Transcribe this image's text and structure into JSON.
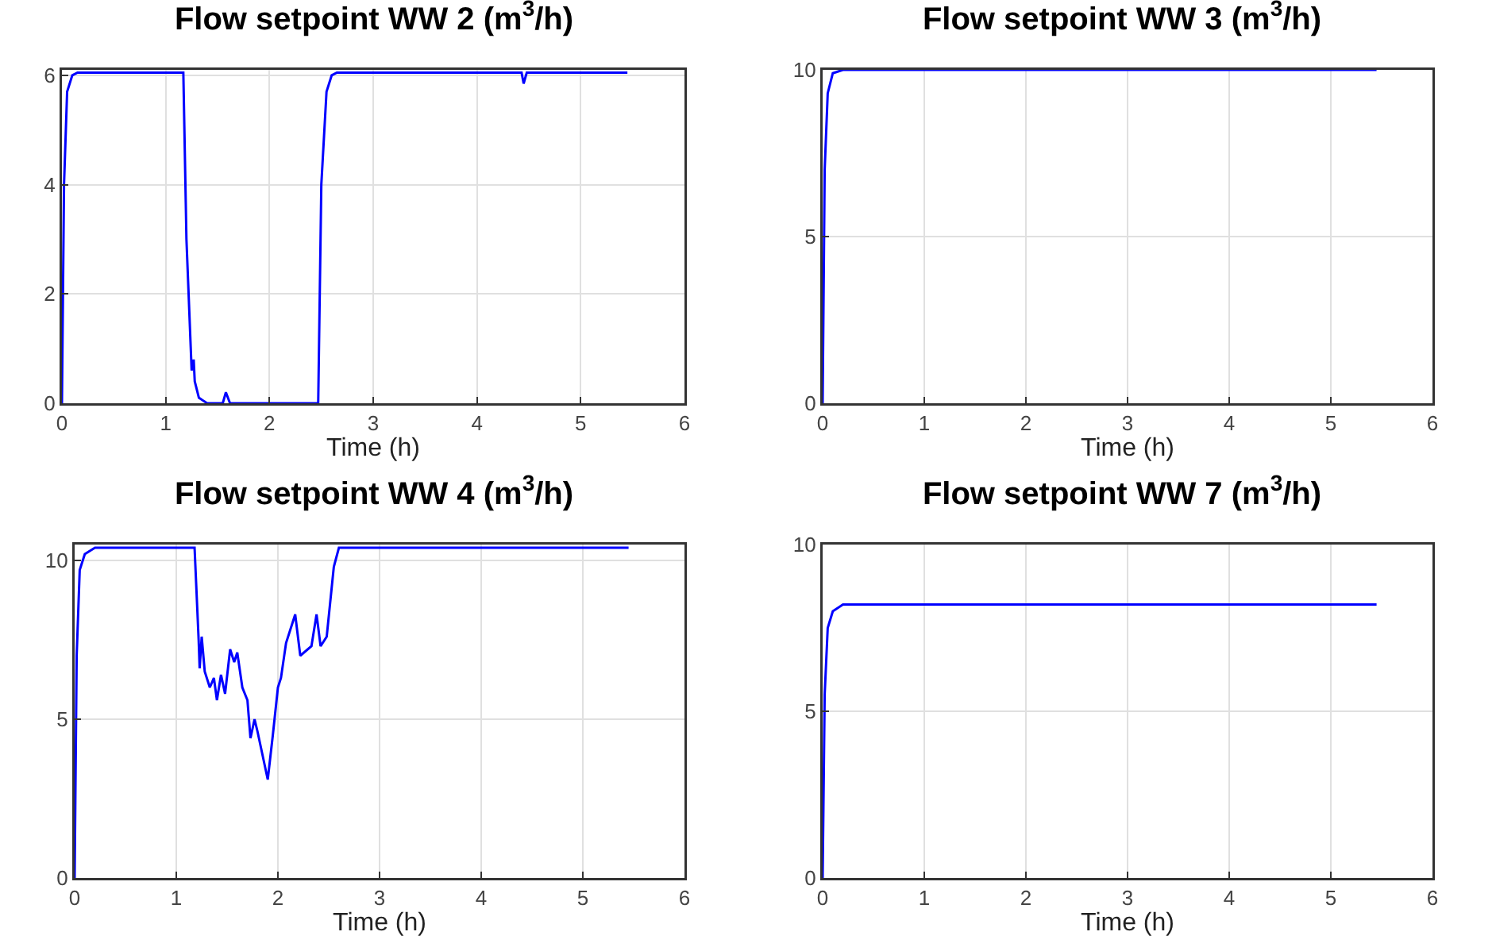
{
  "chart_data": [
    {
      "type": "line",
      "title": "Flow setpoint WW 2 (m$^{3}$/h)",
      "xlabel": "Time (h)",
      "xlim": [
        0,
        6
      ],
      "xticks": [
        0,
        1,
        2,
        3,
        4,
        5,
        6
      ],
      "ylim": [
        0,
        6.1
      ],
      "yticks": [
        0,
        2,
        4,
        6
      ],
      "grid": true,
      "line_style": "solid",
      "series": [
        {
          "color": "#0000ff",
          "x": [
            0,
            0.02,
            0.05,
            0.1,
            0.15,
            1.17,
            1.2,
            1.25,
            1.27,
            1.28,
            1.32,
            1.4,
            1.55,
            1.58,
            1.62,
            2.0,
            2.47,
            2.5,
            2.55,
            2.6,
            2.65,
            4.43,
            4.45,
            4.48,
            5.45
          ],
          "values": [
            0,
            4,
            5.7,
            6.0,
            6.05,
            6.05,
            3,
            0.6,
            0.8,
            0.4,
            0.1,
            0,
            0,
            0.2,
            0,
            0,
            0,
            4,
            5.7,
            6.0,
            6.05,
            6.05,
            5.85,
            6.05,
            6.05
          ]
        }
      ]
    },
    {
      "type": "line",
      "title": "Flow setpoint WW 3 (m$^{3}$/h)",
      "xlabel": "Time (h)",
      "xlim": [
        0,
        6
      ],
      "xticks": [
        0,
        1,
        2,
        3,
        4,
        5,
        6
      ],
      "ylim": [
        0,
        10
      ],
      "yticks": [
        0,
        5,
        10
      ],
      "grid": true,
      "line_style": "solid",
      "series": [
        {
          "color": "#0000ff",
          "x": [
            0,
            0.02,
            0.05,
            0.1,
            0.2,
            5.45
          ],
          "values": [
            0,
            7,
            9.3,
            9.9,
            10,
            10
          ]
        }
      ]
    },
    {
      "type": "line",
      "title": "Flow setpoint WW 4 (m$^{3}$/h)",
      "xlabel": "Time (h)",
      "xlim": [
        0,
        6
      ],
      "xticks": [
        0,
        1,
        2,
        3,
        4,
        5,
        6
      ],
      "ylim": [
        0,
        10.5
      ],
      "yticks": [
        0,
        5,
        10
      ],
      "grid": true,
      "line_style": "solid",
      "series": [
        {
          "color": "#0000ff",
          "x": [
            0,
            0.02,
            0.05,
            0.1,
            0.2,
            1.18,
            1.22,
            1.23,
            1.25,
            1.28,
            1.33,
            1.37,
            1.4,
            1.44,
            1.48,
            1.53,
            1.57,
            1.6,
            1.65,
            1.7,
            1.73,
            1.77,
            1.8,
            1.9,
            1.95,
            2.0,
            2.03,
            2.08,
            2.17,
            2.22,
            2.33,
            2.38,
            2.42,
            2.48,
            2.55,
            2.6,
            5.45
          ],
          "values": [
            0,
            7,
            9.7,
            10.2,
            10.4,
            10.4,
            7.5,
            6.6,
            7.6,
            6.5,
            6.0,
            6.3,
            5.6,
            6.4,
            5.8,
            7.2,
            6.8,
            7.1,
            6.0,
            5.6,
            4.4,
            5.0,
            4.6,
            3.1,
            4.5,
            6.0,
            6.3,
            7.4,
            8.3,
            7.0,
            7.3,
            8.3,
            7.3,
            7.6,
            9.8,
            10.4,
            10.4
          ]
        }
      ]
    },
    {
      "type": "line",
      "title": "Flow setpoint WW 7 (m$^{3}$/h)",
      "xlabel": "Time (h)",
      "xlim": [
        0,
        6
      ],
      "xticks": [
        0,
        1,
        2,
        3,
        4,
        5,
        6
      ],
      "ylim": [
        0,
        10
      ],
      "yticks": [
        0,
        5,
        10
      ],
      "grid": true,
      "line_style": "solid",
      "series": [
        {
          "color": "#0000ff",
          "x": [
            0,
            0.02,
            0.05,
            0.1,
            0.2,
            5.45
          ],
          "values": [
            0,
            5.5,
            7.5,
            8.0,
            8.2,
            8.2
          ]
        }
      ]
    }
  ]
}
